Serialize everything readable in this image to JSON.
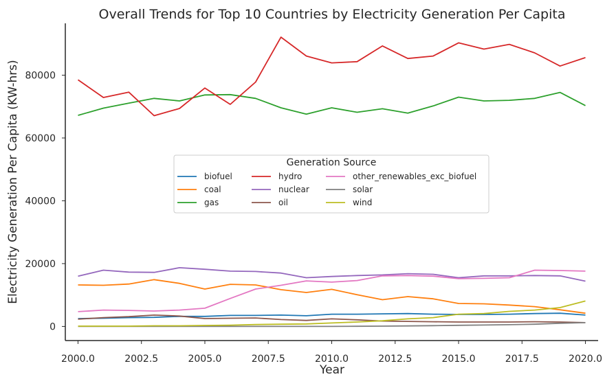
{
  "chart_data": {
    "type": "line",
    "title": "Overall Trends for Top 10 Countries by Electricity Generation Per Capita",
    "xlabel": "Year",
    "ylabel": "Electricity Generation Per Capita (KW-hrs)",
    "xlim": [
      1999.5,
      2020.5
    ],
    "ylim": [
      -4500,
      96500
    ],
    "x_ticks": [
      "2000.0",
      "2002.5",
      "2005.0",
      "2007.5",
      "2010.0",
      "2012.5",
      "2015.0",
      "2017.5",
      "2020.0"
    ],
    "x_tick_values": [
      2000,
      2002.5,
      2005,
      2007.5,
      2010,
      2012.5,
      2015,
      2017.5,
      2020
    ],
    "y_ticks": [
      "0",
      "20000",
      "40000",
      "60000",
      "80000"
    ],
    "y_tick_values": [
      0,
      20000,
      40000,
      60000,
      80000
    ],
    "grid": false,
    "legend": {
      "title": "Generation Source",
      "placement": "center",
      "columns": 3
    },
    "x": [
      2000,
      2001,
      2002,
      2003,
      2004,
      2005,
      2006,
      2007,
      2008,
      2009,
      2010,
      2011,
      2012,
      2013,
      2014,
      2015,
      2016,
      2017,
      2018,
      2019,
      2020
    ],
    "series": [
      {
        "name": "biofuel",
        "color": "#1f77b4",
        "values": [
          2500,
          2600,
          2800,
          2900,
          3200,
          3200,
          3500,
          3500,
          3600,
          3400,
          3900,
          3900,
          4000,
          4100,
          3900,
          3800,
          3800,
          3900,
          4100,
          4200,
          3600
        ]
      },
      {
        "name": "coal",
        "color": "#ff7f0e",
        "values": [
          13200,
          13100,
          13500,
          14900,
          13700,
          11900,
          13400,
          13200,
          11700,
          10800,
          11800,
          10100,
          8500,
          9500,
          8800,
          7300,
          7200,
          6800,
          6300,
          5300,
          4200
        ]
      },
      {
        "name": "gas",
        "color": "#2ca02c",
        "values": [
          67200,
          69500,
          71100,
          72600,
          71800,
          73700,
          73800,
          72600,
          69600,
          67600,
          69600,
          68200,
          69300,
          67900,
          70200,
          73000,
          71800,
          72000,
          72600,
          74500,
          70300
        ]
      },
      {
        "name": "hydro",
        "color": "#d62728",
        "values": [
          78500,
          72900,
          74600,
          67100,
          69400,
          75900,
          70700,
          77800,
          92100,
          86100,
          83900,
          84300,
          89300,
          85300,
          86100,
          90300,
          88300,
          89800,
          87100,
          82900,
          85600
        ]
      },
      {
        "name": "nuclear",
        "color": "#9467bd",
        "values": [
          16000,
          17900,
          17300,
          17200,
          18700,
          18200,
          17600,
          17500,
          17000,
          15500,
          15900,
          16200,
          16400,
          16800,
          16600,
          15500,
          16100,
          16100,
          16200,
          16100,
          14400
        ]
      },
      {
        "name": "oil",
        "color": "#8c564b",
        "values": [
          2300,
          2800,
          3100,
          3600,
          3300,
          2500,
          2600,
          2700,
          2200,
          1900,
          2400,
          2100,
          1700,
          1600,
          1500,
          1400,
          1400,
          1400,
          1500,
          1400,
          1200
        ]
      },
      {
        "name": "other_renewables_exc_biofuel",
        "color": "#e377c2",
        "values": [
          4700,
          5200,
          5100,
          4900,
          5200,
          5800,
          8900,
          11900,
          13100,
          14500,
          14100,
          14600,
          16100,
          16200,
          16000,
          15200,
          15300,
          15500,
          17900,
          17800,
          17600
        ]
      },
      {
        "name": "solar",
        "color": "#7f7f7f",
        "values": [
          0,
          0,
          0,
          0,
          0,
          0,
          0,
          0,
          0,
          0,
          0,
          50,
          100,
          150,
          250,
          350,
          450,
          550,
          700,
          1000,
          1200
        ]
      },
      {
        "name": "wind",
        "color": "#bcbd22",
        "values": [
          100,
          100,
          100,
          200,
          200,
          300,
          400,
          600,
          700,
          800,
          1100,
          1400,
          1800,
          2400,
          2800,
          3900,
          4100,
          4800,
          5200,
          6000,
          8100
        ]
      }
    ]
  }
}
